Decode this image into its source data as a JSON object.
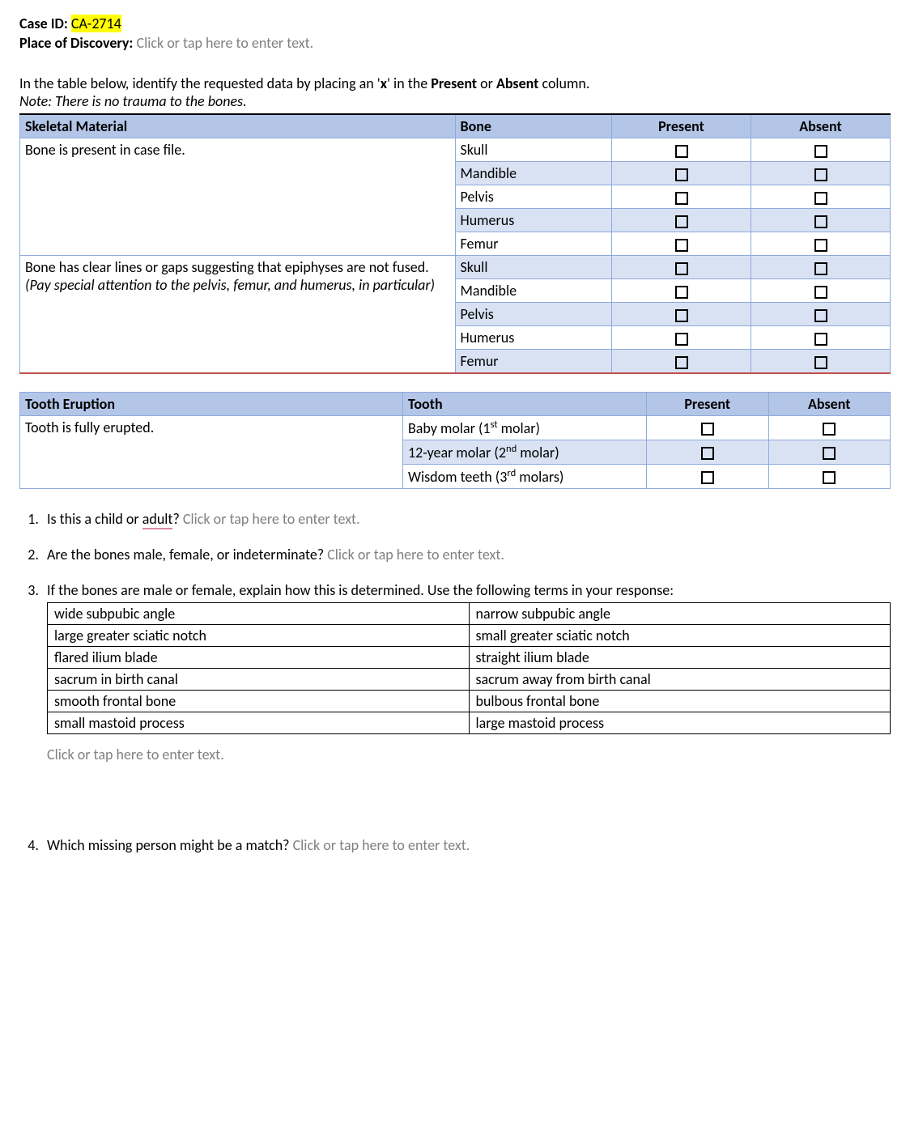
{
  "header": {
    "case_id_label": "Case ID:",
    "case_id_value": "CA-2714",
    "place_label": "Place of Discovery:",
    "place_placeholder": "Click or tap here to enter text."
  },
  "instructions": {
    "line1_a": "In the table below, identify the requested data by placing an '",
    "line1_x": "x",
    "line1_b": "' in the ",
    "line1_present": "Present",
    "line1_c": " or ",
    "line1_absent": "Absent",
    "line1_d": " column.",
    "note": "Note: There is no trauma to the bones."
  },
  "skeletal_table": {
    "headers": [
      "Skeletal Material",
      "Bone",
      "Present",
      "Absent"
    ],
    "groups": [
      {
        "label": "Bone is present in case file.",
        "italic_note": "",
        "bones": [
          "Skull",
          "Mandible",
          "Pelvis",
          "Humerus",
          "Femur"
        ]
      },
      {
        "label": "Bone has clear lines or gaps suggesting that epiphyses are not fused.",
        "italic_note": "(Pay special attention to the pelvis, femur, and humerus, in particular)",
        "bones": [
          "Skull",
          "Mandible",
          "Pelvis",
          "Humerus",
          "Femur"
        ]
      }
    ]
  },
  "tooth_table": {
    "headers": [
      "Tooth Eruption",
      "Tooth",
      "Present",
      "Absent"
    ],
    "group_label": "Tooth is fully erupted.",
    "rows": [
      {
        "label_a": "Baby molar (1",
        "sup": "st",
        "label_b": " molar)"
      },
      {
        "label_a": "12-year molar (2",
        "sup": "nd",
        "label_b": " molar)"
      },
      {
        "label_a": "Wisdom teeth (3",
        "sup": "rd",
        "label_b": " molars)"
      }
    ]
  },
  "questions": {
    "q1_a": "Is this a child or ",
    "q1_adult": "adult",
    "q1_b": "?",
    "q1_placeholder": "Click or tap here to enter text.",
    "q2": "Are the bones male, female, or indeterminate?",
    "q2_placeholder": "Click or tap here to enter text.",
    "q3": "If the bones are male or female, explain how this is determined. Use the following terms in your response:",
    "q3_placeholder": "Click or tap here to enter text.",
    "q4": "Which missing person might be a match?",
    "q4_placeholder": "Click or tap here to enter text."
  },
  "terms_table": {
    "rows": [
      [
        "wide subpubic angle",
        "narrow subpubic angle"
      ],
      [
        "large greater sciatic notch",
        "small greater sciatic notch"
      ],
      [
        "flared ilium blade",
        "straight ilium blade"
      ],
      [
        "sacrum in birth canal",
        "sacrum away from birth canal"
      ],
      [
        "smooth frontal bone",
        "bulbous frontal bone"
      ],
      [
        "small mastoid process",
        "large mastoid process"
      ]
    ]
  },
  "colors": {
    "highlight": "#ffff00",
    "header_bg": "#b4c6e7",
    "row_alt_bg": "#d9e2f3",
    "border_blue": "#8eaadb",
    "border_red": "#c0504d",
    "placeholder": "#808080"
  }
}
